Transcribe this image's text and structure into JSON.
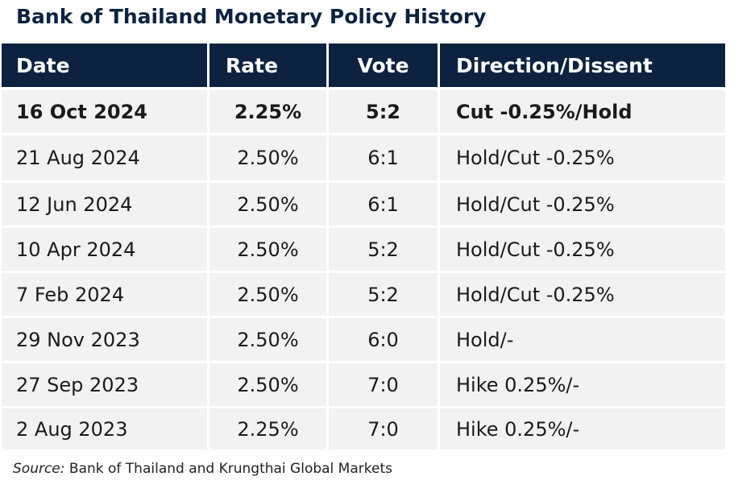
{
  "title": "Bank of Thailand Monetary Policy History",
  "chart_data": {
    "type": "table",
    "columns": [
      "Date",
      "Rate",
      "Vote",
      "Direction/Dissent"
    ],
    "rows": [
      {
        "date": "16 Oct 2024",
        "rate": "2.25%",
        "vote": "5:2",
        "direction": "Cut -0.25%/Hold",
        "bold": true
      },
      {
        "date": "21 Aug 2024",
        "rate": "2.50%",
        "vote": "6:1",
        "direction": "Hold/Cut -0.25%",
        "bold": false
      },
      {
        "date": "12 Jun 2024",
        "rate": "2.50%",
        "vote": "6:1",
        "direction": "Hold/Cut -0.25%",
        "bold": false
      },
      {
        "date": "10 Apr 2024",
        "rate": "2.50%",
        "vote": "5:2",
        "direction": "Hold/Cut -0.25%",
        "bold": false
      },
      {
        "date": "7 Feb 2024",
        "rate": "2.50%",
        "vote": "5:2",
        "direction": "Hold/Cut -0.25%",
        "bold": false
      },
      {
        "date": "29 Nov 2023",
        "rate": "2.50%",
        "vote": "6:0",
        "direction": "Hold/-",
        "bold": false
      },
      {
        "date": "27 Sep 2023",
        "rate": "2.50%",
        "vote": "7:0",
        "direction": "Hike 0.25%/-",
        "bold": false
      },
      {
        "date": "2 Aug 2023",
        "rate": "2.25%",
        "vote": "7:0",
        "direction": "Hike 0.25%/-",
        "bold": false
      }
    ]
  },
  "source": {
    "label": "Source:",
    "text": " Bank of Thailand and Krungthai Global Markets"
  },
  "colors": {
    "header_bg": "#0c2240",
    "row_bg": "#f2f2f2",
    "title": "#0c2240"
  }
}
